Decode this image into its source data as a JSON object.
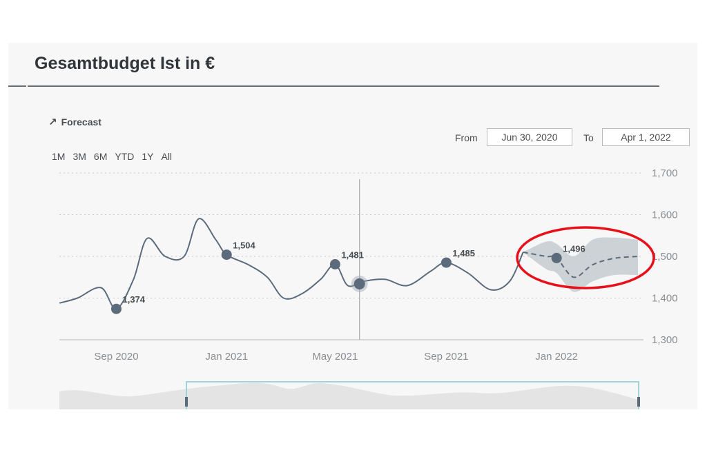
{
  "title": "Gesamtbudget Ist in €",
  "forecast_link": {
    "icon": "arrow-up-right-icon",
    "label": "Forecast"
  },
  "range_buttons": [
    "1M",
    "3M",
    "6M",
    "YTD",
    "1Y",
    "All"
  ],
  "date_range": {
    "from_label": "From",
    "from_value": "Jun 30, 2020",
    "to_label": "To",
    "to_value": "Apr 1, 2022"
  },
  "colors": {
    "line": "#5b6b7b",
    "marker": "#5b6b7b",
    "forecast_band": "#c6cbd0",
    "highlight_circle": "#e8111a",
    "grid": "#c8c8c8"
  },
  "chart_data": {
    "type": "line",
    "x_tick_labels": [
      "Sep 2020",
      "Jan 2021",
      "May 2021",
      "Sep 2021",
      "Jan 2022"
    ],
    "y_tick_labels": [
      "1,700",
      "1,600",
      "1,500",
      "1,400",
      "1,300"
    ],
    "ylim": [
      1300,
      1700
    ],
    "grid": "horizontal dotted",
    "series": [
      {
        "kind": "actual",
        "x": [
          "2020-06-30",
          "2020-07-20",
          "2020-08-15",
          "2020-09-01",
          "2020-09-20",
          "2020-10-05",
          "2020-10-25",
          "2020-11-15",
          "2020-12-01",
          "2020-12-20",
          "2021-01-01",
          "2021-01-25",
          "2021-02-15",
          "2021-03-05",
          "2021-03-25",
          "2021-04-15",
          "2021-05-01",
          "2021-05-15",
          "2021-06-01",
          "2021-06-25",
          "2021-07-20",
          "2021-08-15",
          "2021-09-01",
          "2021-09-25",
          "2021-10-20",
          "2021-11-10",
          "2021-11-25"
        ],
        "values": [
          1388,
          1400,
          1425,
          1374,
          1445,
          1543,
          1500,
          1500,
          1590,
          1540,
          1504,
          1480,
          1450,
          1400,
          1410,
          1445,
          1481,
          1430,
          1440,
          1445,
          1430,
          1465,
          1485,
          1460,
          1420,
          1440,
          1510
        ]
      },
      {
        "kind": "forecast",
        "x": [
          "2021-11-25",
          "2021-12-20",
          "2022-01-01",
          "2022-01-20",
          "2022-02-10",
          "2022-03-05",
          "2022-04-01"
        ],
        "values": [
          1510,
          1500,
          1496,
          1450,
          1480,
          1495,
          1500
        ],
        "band_upper": [
          1510,
          1535,
          1530,
          1500,
          1540,
          1545,
          1540
        ],
        "band_lower": [
          1510,
          1470,
          1460,
          1415,
          1440,
          1455,
          1455
        ]
      }
    ],
    "data_labels": [
      {
        "x": "2020-09-01",
        "value": 1374,
        "text": "1,374"
      },
      {
        "x": "2021-01-01",
        "value": 1504,
        "text": "1,504"
      },
      {
        "x": "2021-05-01",
        "value": 1481,
        "text": "1,481"
      },
      {
        "x": "2021-09-01",
        "value": 1485,
        "text": "1,485"
      },
      {
        "x": "2022-01-01",
        "value": 1496,
        "text": "1,496"
      }
    ],
    "hover_marker": {
      "x": "2021-05-28",
      "value": 1434
    },
    "highlight": "forecast region circled in red"
  }
}
